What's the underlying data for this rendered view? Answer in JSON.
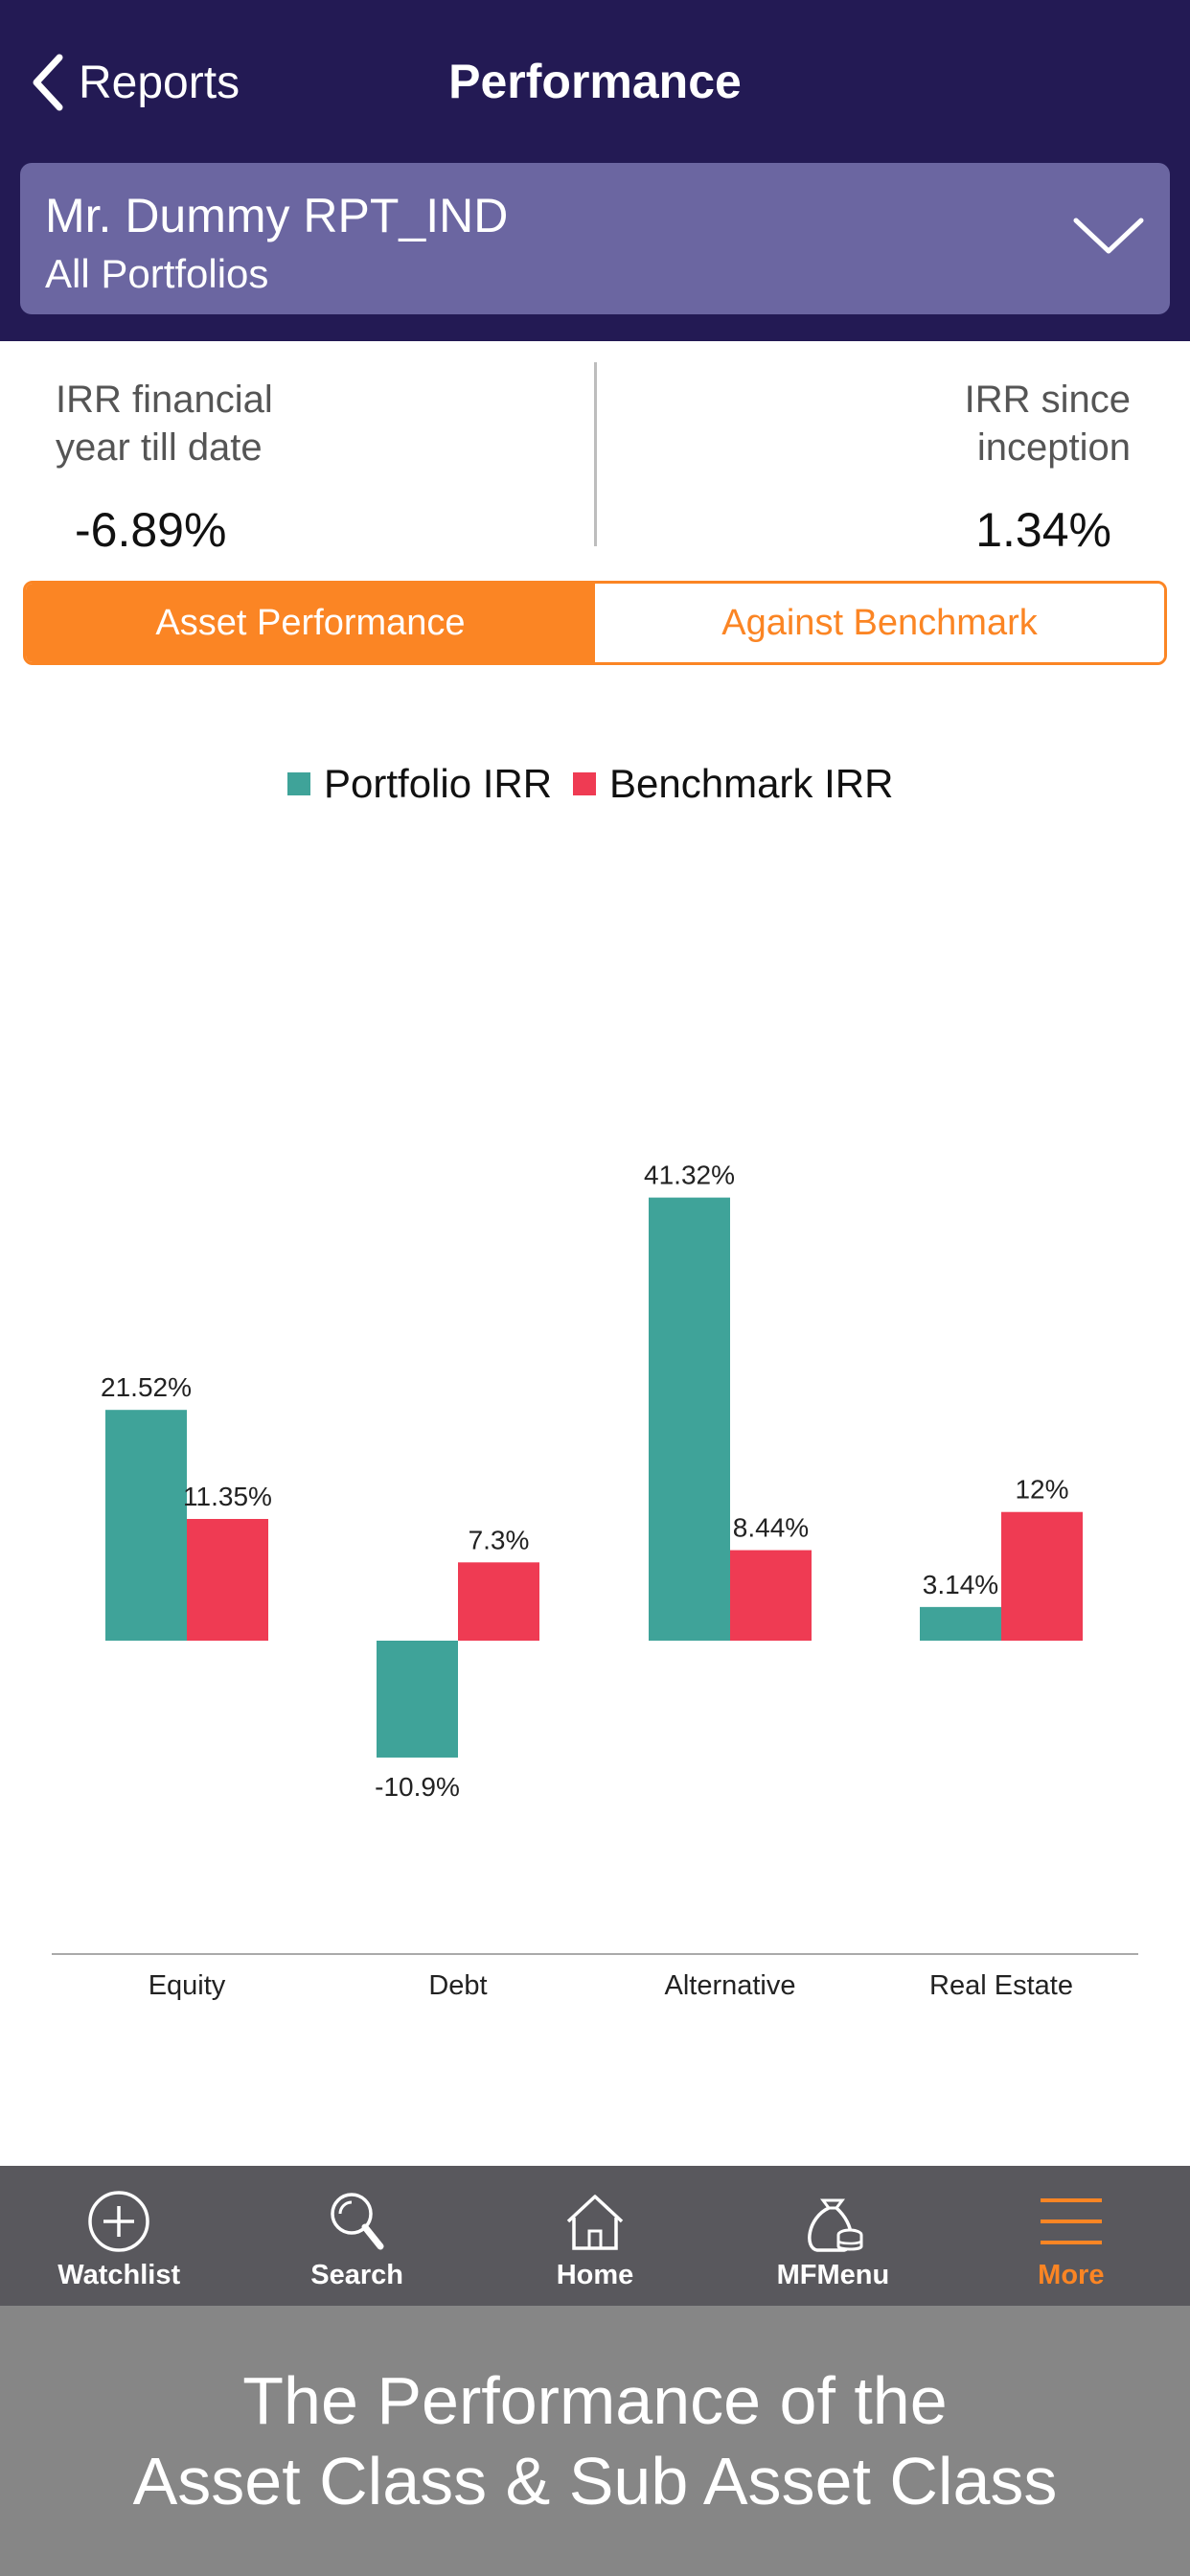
{
  "header": {
    "back_label": "Reports",
    "title": "Performance"
  },
  "selector": {
    "client_name": "Mr. Dummy RPT_IND",
    "portfolio": "All Portfolios"
  },
  "irr": {
    "left_label_line1": "IRR financial",
    "left_label_line2": "year till date",
    "left_value": "-6.89%",
    "right_label_line1": "IRR since",
    "right_label_line2": "inception",
    "right_value": "1.34%"
  },
  "segments": {
    "active": "Asset Performance",
    "inactive": "Against Benchmark"
  },
  "chart_data": {
    "type": "bar",
    "categories": [
      "Equity",
      "Debt",
      "Alternative",
      "Real Estate"
    ],
    "series": [
      {
        "name": "Portfolio IRR",
        "color": "#3fa399",
        "values": [
          21.52,
          -10.9,
          41.32,
          3.14
        ],
        "labels": [
          "21.52%",
          "-10.9%",
          "41.32%",
          "3.14%"
        ]
      },
      {
        "name": "Benchmark IRR",
        "color": "#ef3b53",
        "values": [
          11.35,
          7.3,
          8.44,
          12
        ],
        "labels": [
          "11.35%",
          "7.3%",
          "8.44%",
          "12%"
        ]
      }
    ],
    "legend_position": "top-center",
    "grid": false
  },
  "tabbar": {
    "items": [
      {
        "label": "Watchlist",
        "icon": "plus-circle-icon"
      },
      {
        "label": "Search",
        "icon": "search-icon"
      },
      {
        "label": "Home",
        "icon": "home-icon"
      },
      {
        "label": "MFMenu",
        "icon": "money-bag-icon"
      },
      {
        "label": "More",
        "icon": "menu-icon"
      }
    ],
    "active_color": "#fb8524"
  },
  "caption": {
    "line1": "The Performance of the",
    "line2": "Asset Class & Sub Asset Class"
  }
}
